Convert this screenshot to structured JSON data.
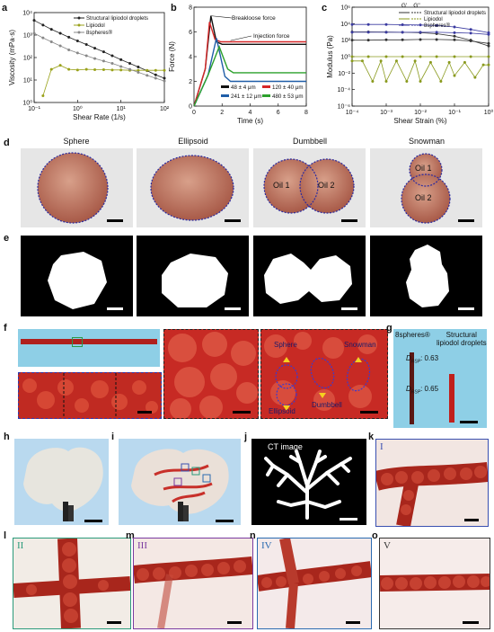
{
  "panels": {
    "a": "a",
    "b": "b",
    "c": "c",
    "d": "d",
    "e": "e",
    "f": "f",
    "g": "g",
    "h": "h",
    "i": "i",
    "j": "j",
    "k": "k",
    "l": "l",
    "m": "m",
    "n": "n",
    "o": "o"
  },
  "colors": {
    "structural": "#222222",
    "lipiodol": "#9aa21b",
    "eightspheres": "#888888",
    "b48": "#111111",
    "b120": "#d62728",
    "b241": "#1f5ea8",
    "b480": "#2ca02c",
    "c_structural": "#333333",
    "c_lipiodol": "#8a9a1e",
    "c_8spheres": "#3a3aa0",
    "roman_I": "#3a4fb0",
    "roman_II": "#2a9a7a",
    "roman_III": "#7a3aa0",
    "roman_IV": "#2a6ab0",
    "roman_V": "#333333"
  },
  "chart_data": [
    {
      "panel": "a",
      "type": "line",
      "xlabel": "Shear Rate (1/s)",
      "ylabel": "Viscosity (mPa·s)",
      "xscale": "log",
      "yscale": "log",
      "xlim": [
        0.1,
        100
      ],
      "ylim": [
        1,
        10000
      ],
      "xticks": [
        "10⁻¹",
        "10⁰",
        "10¹",
        "10²"
      ],
      "yticks": [
        "10⁰",
        "10¹",
        "10²",
        "10³",
        "10⁴"
      ],
      "legend": [
        "Structural lipiodol droplets",
        "Lipiodol",
        "8spheres®"
      ],
      "series": [
        {
          "name": "Structural lipiodol droplets",
          "x": [
            0.1,
            0.16,
            0.25,
            0.4,
            0.63,
            1,
            1.6,
            2.5,
            4,
            6.3,
            10,
            16,
            25,
            40,
            63,
            100
          ],
          "y": [
            4500,
            2800,
            1800,
            1200,
            800,
            550,
            380,
            260,
            180,
            120,
            80,
            55,
            38,
            26,
            17,
            12
          ]
        },
        {
          "name": "Lipiodol",
          "x": [
            0.16,
            0.25,
            0.4,
            0.63,
            1,
            1.6,
            2.5,
            4,
            6.3,
            10,
            16,
            25,
            40,
            63,
            100
          ],
          "y": [
            2,
            30,
            45,
            30,
            28,
            30,
            29,
            29,
            28,
            28,
            27,
            27,
            27,
            27,
            27
          ]
        },
        {
          "name": "8spheres®",
          "x": [
            0.1,
            0.16,
            0.25,
            0.4,
            0.63,
            1,
            1.6,
            2.5,
            4,
            6.3,
            10,
            16,
            25,
            40,
            63,
            100
          ],
          "y": [
            1200,
            750,
            500,
            330,
            220,
            160,
            120,
            90,
            70,
            55,
            40,
            30,
            22,
            16,
            12,
            9
          ]
        }
      ]
    },
    {
      "panel": "b",
      "type": "line",
      "xlabel": "Time (s)",
      "ylabel": "Force (N)",
      "xlim": [
        0,
        8
      ],
      "ylim": [
        0,
        8
      ],
      "xticks": [
        "0",
        "2",
        "4",
        "6",
        "8"
      ],
      "yticks": [
        "0",
        "2",
        "4",
        "6",
        "8"
      ],
      "annotations": [
        "Breakloose force",
        "Injection force"
      ],
      "legend": [
        "48 ± 4 μm",
        "120 ± 40 μm",
        "241 ± 12 μm",
        "480 ± 53 μm"
      ],
      "series": [
        {
          "name": "48 ± 4 μm",
          "x": [
            0,
            0.8,
            1.2,
            1.6,
            2.0,
            8
          ],
          "y": [
            0,
            3,
            7.3,
            5.2,
            5.0,
            5.0
          ]
        },
        {
          "name": "120 ± 40 μm",
          "x": [
            0,
            0.8,
            1.1,
            1.5,
            1.9,
            8
          ],
          "y": [
            0,
            3,
            6.8,
            5.4,
            5.2,
            5.2
          ]
        },
        {
          "name": "241 ± 12 μm",
          "x": [
            0,
            1.0,
            1.6,
            2.2,
            2.6,
            8
          ],
          "y": [
            0,
            2.5,
            5.5,
            2.4,
            2.0,
            2.0
          ]
        },
        {
          "name": "480 ± 53 μm",
          "x": [
            0,
            1.0,
            1.8,
            2.4,
            2.8,
            8
          ],
          "y": [
            0,
            2.5,
            4.8,
            3.0,
            2.7,
            2.7
          ]
        }
      ]
    },
    {
      "panel": "c",
      "type": "line",
      "xlabel": "Shear Strain (%)",
      "ylabel": "Modulus (Pa)",
      "xscale": "log",
      "yscale": "log",
      "xlim": [
        0.0001,
        1
      ],
      "ylim": [
        1e-06,
        1000000
      ],
      "xticks": [
        "10⁻⁴",
        "10⁻³",
        "10⁻²",
        "10⁻¹",
        "10⁰"
      ],
      "yticks": [
        "10⁻⁶",
        "10⁻⁴",
        "10⁻²",
        "10⁰",
        "10²",
        "10⁴",
        "10⁶"
      ],
      "legend_header": [
        "G'",
        "G''"
      ],
      "legend": [
        "Structural lipiodol droplets",
        "Lipiodol",
        "8spheres®"
      ],
      "series": [
        {
          "name": "Structural lipiodol droplets G'",
          "x": [
            0.0001,
            0.0003,
            0.001,
            0.003,
            0.01,
            0.03,
            0.1,
            0.3,
            1
          ],
          "y": [
            1000,
            1000,
            950,
            900,
            800,
            600,
            300,
            100,
            20
          ]
        },
        {
          "name": "Structural lipiodol droplets G''",
          "x": [
            0.0001,
            0.0003,
            0.001,
            0.003,
            0.01,
            0.03,
            0.1,
            0.3,
            1
          ],
          "y": [
            100,
            100,
            110,
            110,
            120,
            120,
            110,
            80,
            40
          ]
        },
        {
          "name": "Lipiodol G'",
          "x": [
            0.0001,
            0.0002,
            0.0004,
            0.0007,
            0.001,
            0.002,
            0.004,
            0.007,
            0.01,
            0.02,
            0.04,
            0.07,
            0.1,
            0.2,
            0.4,
            0.7,
            1
          ],
          "y": [
            0.3,
            0.3,
            0.001,
            0.3,
            0.001,
            0.3,
            0.001,
            0.3,
            0.001,
            0.2,
            0.001,
            0.2,
            0.005,
            0.2,
            0.003,
            0.1,
            0.1
          ]
        },
        {
          "name": "Lipiodol G''",
          "x": [
            0.0001,
            0.0003,
            0.001,
            0.003,
            0.01,
            0.03,
            0.1,
            0.3,
            1
          ],
          "y": [
            1,
            1,
            1,
            1,
            1,
            1,
            1,
            1,
            1
          ]
        },
        {
          "name": "8spheres® G'",
          "x": [
            0.0001,
            0.0003,
            0.001,
            0.003,
            0.01,
            0.03,
            0.1,
            0.3,
            1
          ],
          "y": [
            8000,
            8000,
            8000,
            7500,
            7000,
            6000,
            4000,
            2000,
            800
          ]
        },
        {
          "name": "8spheres® G''",
          "x": [
            0.0001,
            0.0003,
            0.001,
            0.003,
            0.01,
            0.03,
            0.1,
            0.3,
            1
          ],
          "y": [
            900,
            900,
            900,
            900,
            900,
            900,
            800,
            700,
            500
          ]
        }
      ]
    }
  ],
  "row_d": {
    "titles": [
      "Sphere",
      "Ellipsoid",
      "Dumbbell",
      "Snowman"
    ],
    "oil1": "Oil 1",
    "oil2": "Oil 2"
  },
  "panel_f": {
    "labels": [
      "Sphere",
      "Snowman",
      "Ellipsoid",
      "Dumbbell"
    ]
  },
  "panel_g": {
    "left_label": "8spheres®",
    "right_label": "Structural\nlipiodol droplets",
    "dsp1": "D",
    "dsp1_sub": "RSP",
    "dsp1_val": ": 0.63",
    "dsp2_val": ": 0.65"
  },
  "panel_j": {
    "title": "CT image"
  },
  "romans": {
    "k": "I",
    "l": "II",
    "m": "III",
    "n": "IV",
    "o": "V"
  }
}
